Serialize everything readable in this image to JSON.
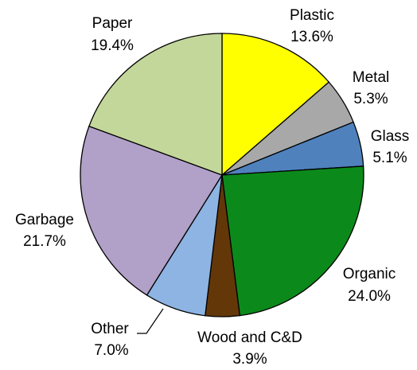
{
  "chart_data": {
    "type": "pie",
    "title": "",
    "start": "12 o'clock",
    "direction": "clockwise",
    "slices": [
      {
        "label": "Plastic",
        "value": 13.6,
        "value_label": "13.6%",
        "color": "#FFFF00"
      },
      {
        "label": "Metal",
        "value": 5.3,
        "value_label": "5.3%",
        "color": "#A8A8A8"
      },
      {
        "label": "Glass",
        "value": 5.1,
        "value_label": "5.1%",
        "color": "#4F81BD"
      },
      {
        "label": "Organic",
        "value": 24.0,
        "value_label": "24.0%",
        "color": "#0B8A1B"
      },
      {
        "label": "Wood and C&D",
        "value": 3.9,
        "value_label": "3.9%",
        "color": "#633708"
      },
      {
        "label": "Other",
        "value": 7.0,
        "value_label": "7.0%",
        "color": "#8DB4E2"
      },
      {
        "label": "Garbage",
        "value": 21.7,
        "value_label": "21.7%",
        "color": "#B1A0C7"
      },
      {
        "label": "Paper",
        "value": 19.4,
        "value_label": "19.4%",
        "color": "#C4D79B"
      }
    ]
  }
}
